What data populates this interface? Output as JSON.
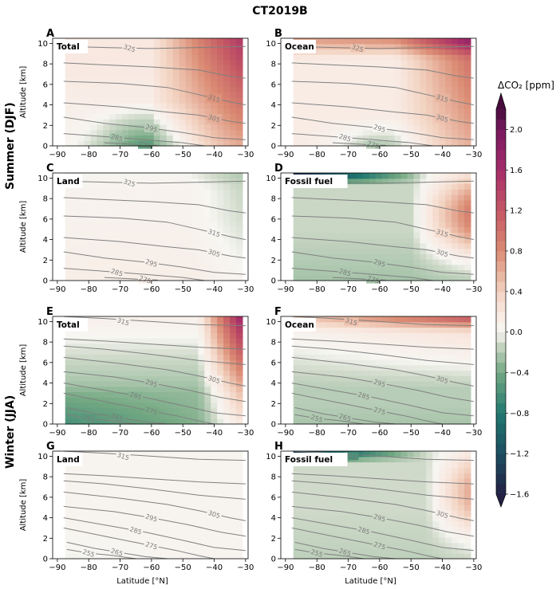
{
  "title": "CT2019B",
  "seasons": [
    "Summer (DJF)",
    "Winter (JJA)"
  ],
  "colorbar": {
    "label": "ΔCO₂ [ppm]",
    "ticks": [
      "2.0",
      "1.6",
      "1.2",
      "0.8",
      "0.4",
      "0.0",
      "−0.4",
      "−0.8",
      "−1.2",
      "−1.6"
    ],
    "range": [
      -1.6,
      2.2
    ]
  },
  "axes": {
    "xlabel": "Latitude [°N]",
    "ylabel": "Altitude [km]",
    "xticks": [
      "−90",
      "−80",
      "−70",
      "−60",
      "−50",
      "−40",
      "−30"
    ],
    "yticks": [
      "0",
      "2",
      "4",
      "6",
      "8",
      "10"
    ]
  },
  "chart_data": [
    {
      "type": "heatmap",
      "panel": "A",
      "label": "Total",
      "season": "DJF",
      "xlim": [
        -90,
        -30
      ],
      "ylim": [
        0,
        10.5
      ],
      "contours": [
        "325",
        "315",
        "305",
        "295",
        "285",
        "275"
      ]
    },
    {
      "type": "heatmap",
      "panel": "B",
      "label": "Ocean",
      "season": "DJF",
      "xlim": [
        -90,
        -30
      ],
      "ylim": [
        0,
        10.5
      ],
      "contours": [
        "325",
        "315",
        "305",
        "295",
        "285",
        "275"
      ]
    },
    {
      "type": "heatmap",
      "panel": "C",
      "label": "Land",
      "season": "DJF",
      "xlim": [
        -90,
        -30
      ],
      "ylim": [
        0,
        10.5
      ],
      "contours": [
        "325",
        "315",
        "305",
        "295",
        "285",
        "275"
      ]
    },
    {
      "type": "heatmap",
      "panel": "D",
      "label": "Fossil fuel",
      "season": "DJF",
      "xlim": [
        -90,
        -30
      ],
      "ylim": [
        0,
        10.5
      ],
      "contours": [
        "315",
        "305",
        "295",
        "285",
        "275"
      ]
    },
    {
      "type": "heatmap",
      "panel": "E",
      "label": "Total",
      "season": "JJA",
      "xlim": [
        -90,
        -30
      ],
      "ylim": [
        0,
        10.5
      ],
      "contours": [
        "315",
        "305",
        "295",
        "285",
        "275",
        "265",
        "255"
      ]
    },
    {
      "type": "heatmap",
      "panel": "F",
      "label": "Ocean",
      "season": "JJA",
      "xlim": [
        -90,
        -30
      ],
      "ylim": [
        0,
        10.5
      ],
      "contours": [
        "315",
        "305",
        "295",
        "285",
        "275",
        "265",
        "255"
      ]
    },
    {
      "type": "heatmap",
      "panel": "G",
      "label": "Land",
      "season": "JJA",
      "xlim": [
        -90,
        -30
      ],
      "ylim": [
        0,
        10.5
      ],
      "contours": [
        "315",
        "305",
        "295",
        "285",
        "275",
        "265",
        "255"
      ]
    },
    {
      "type": "heatmap",
      "panel": "H",
      "label": "Fossil fuel",
      "season": "JJA",
      "xlim": [
        -90,
        -30
      ],
      "ylim": [
        0,
        10.5
      ],
      "contours": [
        "315",
        "305",
        "295",
        "285",
        "275",
        "265",
        "255"
      ]
    }
  ]
}
